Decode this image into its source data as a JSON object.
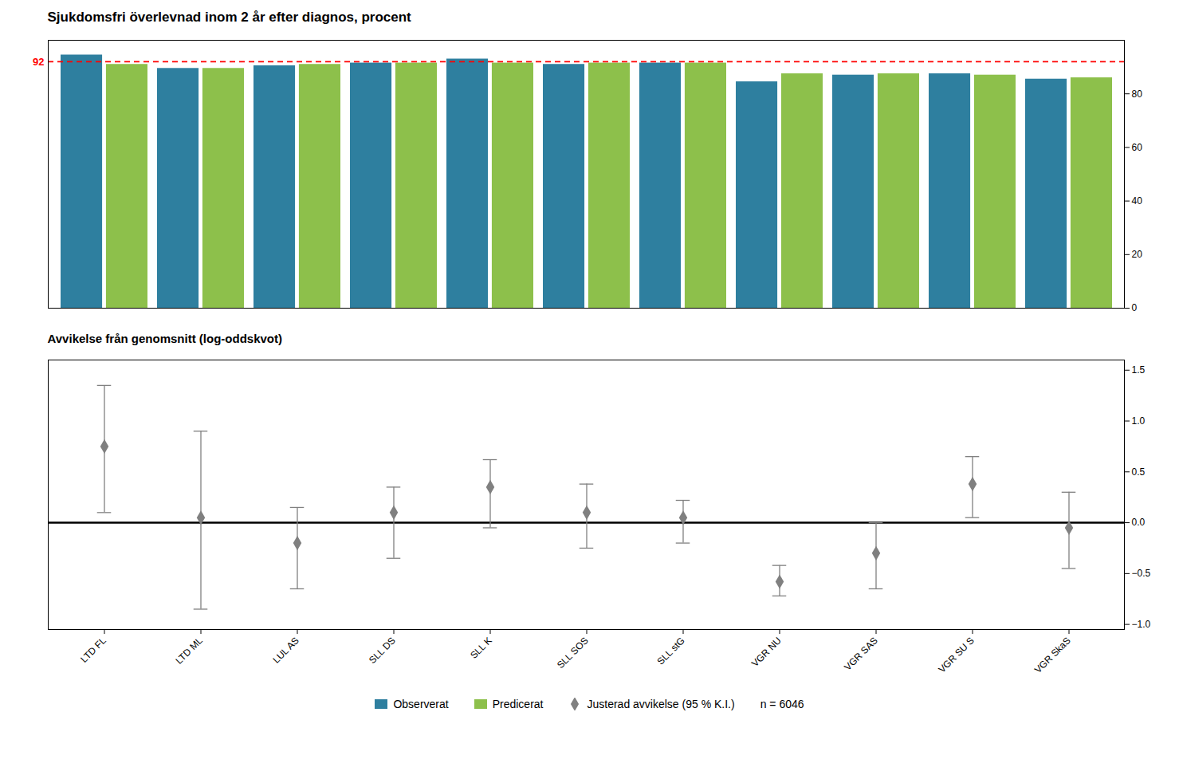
{
  "chart_data": [
    {
      "type": "bar",
      "title": "Sjukdomsfri överlevnad inom 2 år efter diagnos, procent",
      "categories": [
        "LTD FL",
        "LTD ML",
        "LUL AS",
        "SLL DS",
        "SLL K",
        "SLL SOS",
        "SLL stG",
        "VGR NU",
        "VGR SAS",
        "VGR SU S",
        "VGR SkaS"
      ],
      "series": [
        {
          "name": "Observerat",
          "color": "#2e7f9f",
          "values": [
            94.5,
            89.5,
            90.5,
            91.5,
            93.0,
            91.0,
            91.5,
            84.5,
            87.0,
            87.5,
            85.5
          ]
        },
        {
          "name": "Predicerat",
          "color": "#8dc04b",
          "values": [
            91.0,
            89.5,
            91.0,
            91.5,
            91.5,
            91.5,
            91.5,
            87.5,
            87.5,
            87.0,
            86.0
          ]
        }
      ],
      "reference_line": {
        "value": 92,
        "label": "92",
        "color": "red",
        "line_style": "dashed"
      },
      "ylim": [
        0,
        100
      ],
      "yticks": [
        0,
        20,
        40,
        60,
        80
      ],
      "grid": false,
      "tick_labels": "y",
      "legend": "bottom"
    },
    {
      "type": "scatter",
      "title": "Avvikelse från genomsnitt (log-oddskvot)",
      "categories": [
        "LTD FL",
        "LTD ML",
        "LUL AS",
        "SLL DS",
        "SLL K",
        "SLL SOS",
        "SLL stG",
        "VGR NU",
        "VGR SAS",
        "VGR SU S",
        "VGR SkaS"
      ],
      "series": [
        {
          "name": "Justerad avvikelse (95 % K.I.)",
          "color": "#808080",
          "marker": "diamond",
          "values": [
            0.75,
            0.05,
            -0.2,
            0.1,
            0.35,
            0.1,
            0.05,
            -0.58,
            -0.3,
            0.38,
            -0.05
          ],
          "ci_low": [
            0.1,
            -0.85,
            -0.65,
            -0.35,
            -0.05,
            -0.25,
            -0.2,
            -0.72,
            -0.65,
            0.05,
            -0.45
          ],
          "ci_high": [
            1.35,
            0.9,
            0.15,
            0.35,
            0.62,
            0.38,
            0.22,
            -0.42,
            0.0,
            0.65,
            0.3
          ]
        }
      ],
      "reference_line": {
        "value": 0,
        "color": "black",
        "line_style": "solid"
      },
      "ylim": [
        -1.05,
        1.6
      ],
      "yticks": [
        {
          "value": -1.0,
          "label": "−1.0"
        },
        {
          "value": -0.5,
          "label": "−0.5"
        },
        {
          "value": 0.0,
          "label": "0.0"
        },
        0.5,
        {
          "value": 1.0,
          "label": "1.0"
        },
        1.5
      ],
      "grid": false,
      "legend": "bottom",
      "legend_note": "n = 6046"
    }
  ]
}
